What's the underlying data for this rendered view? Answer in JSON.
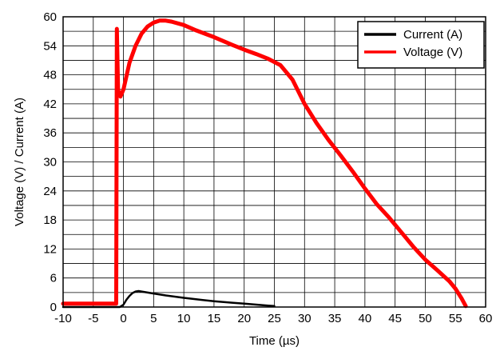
{
  "chart_data": {
    "type": "line",
    "title": "",
    "xlabel": "Time (µs)",
    "ylabel": "Voltage (V) / Current (A)",
    "xlim": [
      -10,
      60
    ],
    "ylim": [
      0,
      60
    ],
    "x_ticks": [
      "-10",
      "-5",
      "0",
      "5",
      "10",
      "15",
      "20",
      "25",
      "30",
      "35",
      "40",
      "45",
      "50",
      "55",
      "60"
    ],
    "y_ticks": [
      "0",
      "6",
      "12",
      "18",
      "24",
      "30",
      "36",
      "42",
      "48",
      "54",
      "60"
    ],
    "grid": true,
    "legend_position": "top-right",
    "series": [
      {
        "name": "Current (A)",
        "color": "#000000",
        "points": [
          [
            -10,
            0
          ],
          [
            -0.6,
            0
          ],
          [
            0,
            0.5
          ],
          [
            0.5,
            1.5
          ],
          [
            1,
            2.3
          ],
          [
            1.5,
            2.9
          ],
          [
            2,
            3.2
          ],
          [
            2.5,
            3.3
          ],
          [
            3,
            3.2
          ],
          [
            4,
            3.0
          ],
          [
            5,
            2.8
          ],
          [
            7,
            2.4
          ],
          [
            10,
            1.9
          ],
          [
            12,
            1.6
          ],
          [
            15,
            1.2
          ],
          [
            18,
            0.9
          ],
          [
            20,
            0.7
          ],
          [
            22,
            0.5
          ],
          [
            24,
            0.3
          ],
          [
            25,
            0.2
          ]
        ]
      },
      {
        "name": "Voltage (V)",
        "color": "#ff0000",
        "points": [
          [
            -10,
            0.7
          ],
          [
            -1.2,
            0.7
          ],
          [
            -1.1,
            57.5
          ],
          [
            -0.9,
            45
          ],
          [
            -0.7,
            44
          ],
          [
            -0.5,
            43.5
          ],
          [
            0,
            45
          ],
          [
            1,
            50.5
          ],
          [
            2,
            54
          ],
          [
            3,
            56.5
          ],
          [
            4,
            58
          ],
          [
            5,
            58.8
          ],
          [
            6,
            59.2
          ],
          [
            7,
            59.2
          ],
          [
            8,
            59
          ],
          [
            10,
            58.3
          ],
          [
            12,
            57.2
          ],
          [
            15,
            55.8
          ],
          [
            18,
            54.2
          ],
          [
            20,
            53.2
          ],
          [
            22,
            52.3
          ],
          [
            24,
            51.3
          ],
          [
            26,
            50
          ],
          [
            28,
            47
          ],
          [
            30,
            42
          ],
          [
            32,
            38
          ],
          [
            34,
            34.5
          ],
          [
            36,
            31.3
          ],
          [
            38,
            28
          ],
          [
            40,
            24.5
          ],
          [
            42,
            21.2
          ],
          [
            44,
            18.5
          ],
          [
            46,
            15.5
          ],
          [
            48,
            12.5
          ],
          [
            50,
            9.8
          ],
          [
            52,
            7.6
          ],
          [
            54,
            5.3
          ],
          [
            55,
            3.8
          ],
          [
            56,
            1.8
          ],
          [
            56.7,
            0.2
          ]
        ]
      }
    ]
  }
}
